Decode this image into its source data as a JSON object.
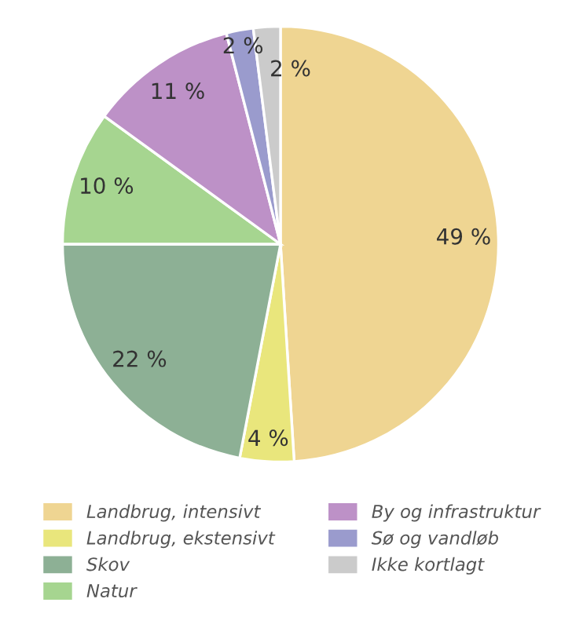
{
  "chart_data": {
    "type": "pie",
    "categories": [
      "Landbrug, intensivt",
      "Landbrug, ekstensivt",
      "Skov",
      "Natur",
      "By og infrastruktur",
      "Sø og vandløb",
      "Ikke kortlagt"
    ],
    "values": [
      49,
      4,
      22,
      10,
      11,
      2,
      2
    ],
    "colors": [
      "#efd592",
      "#e9e67c",
      "#8db095",
      "#a6d590",
      "#bd91c7",
      "#9a9bcd",
      "#cbcbcb"
    ],
    "value_labels": [
      "49 %",
      "4 %",
      "22 %",
      "10 %",
      "11 %",
      "2 %",
      "2 %"
    ],
    "legend": "bottom"
  }
}
